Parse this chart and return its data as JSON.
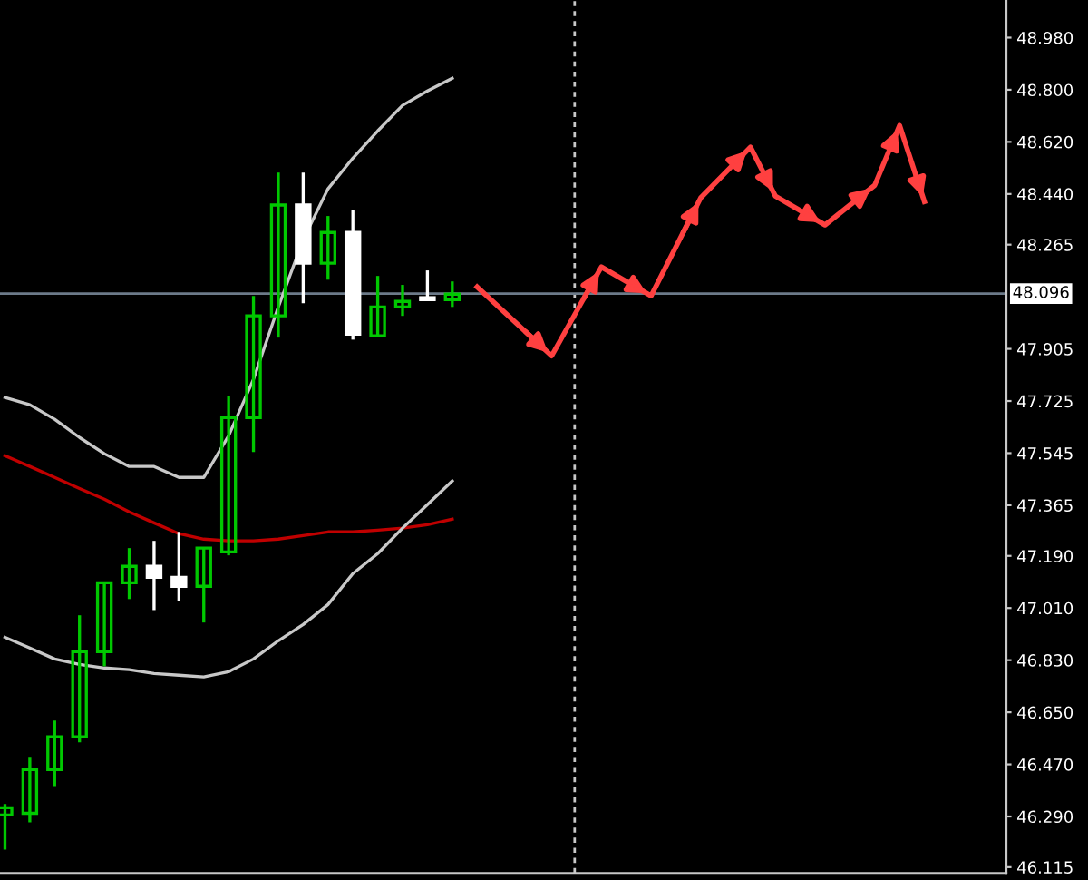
{
  "chart_data": {
    "type": "candlestick",
    "ylim": [
      46.095,
      49.11
    ],
    "categories": [
      null,
      null,
      null,
      null,
      null,
      null,
      null,
      null,
      null,
      null,
      null,
      null,
      null,
      null,
      null,
      null,
      null,
      null,
      null,
      null,
      null,
      null,
      null,
      null,
      null,
      null,
      null,
      null,
      null,
      null,
      null,
      null,
      null,
      null,
      null,
      null,
      null,
      null,
      null,
      null,
      null
    ],
    "yticks": [
      46.115,
      {
        "value": 46.29,
        "label": "46.290"
      },
      {
        "value": 46.47,
        "label": "46.470"
      },
      {
        "value": 46.65,
        "label": "46.650"
      },
      {
        "value": 46.83,
        "label": "46.830"
      },
      {
        "value": 47.01,
        "label": "47.010"
      },
      {
        "value": 47.19,
        "label": "47.190"
      },
      47.365,
      47.545,
      47.725,
      47.905,
      48.265,
      {
        "value": 48.44,
        "label": "48.440"
      },
      {
        "value": 48.62,
        "label": "48.620"
      },
      {
        "value": 48.8,
        "label": "48.800"
      },
      {
        "value": 48.98,
        "label": "48.980"
      }
    ],
    "grid": false,
    "series": [
      {
        "type": "line",
        "color": "#c8c8c8",
        "values": [
          47.737,
          47.712,
          47.662,
          47.599,
          47.543,
          47.499,
          47.499,
          47.461,
          47.461,
          47.605,
          47.8,
          48.05,
          48.282,
          48.458,
          48.564,
          48.658,
          48.746,
          48.796,
          48.84,
          null,
          null,
          null,
          null,
          null,
          null,
          null,
          null,
          null,
          null,
          null,
          null,
          null,
          null,
          null,
          null,
          null,
          null,
          null,
          null,
          null,
          null
        ]
      },
      {
        "type": "line",
        "color": "#c00000",
        "values": [
          47.536,
          47.499,
          47.461,
          47.423,
          47.386,
          47.342,
          47.304,
          47.267,
          47.248,
          47.242,
          47.242,
          47.248,
          47.26,
          47.273,
          47.273,
          47.279,
          47.286,
          47.298,
          47.317,
          null,
          null,
          null,
          null,
          null,
          null,
          null,
          null,
          null,
          null,
          null,
          null,
          null,
          null,
          null,
          null,
          null,
          null,
          null,
          null,
          null,
          null
        ]
      },
      {
        "type": "line",
        "color": "#c8c8c8",
        "values": [
          46.909,
          46.872,
          46.834,
          46.815,
          46.803,
          46.797,
          46.784,
          46.778,
          46.772,
          46.79,
          46.834,
          46.897,
          46.953,
          47.022,
          47.129,
          47.198,
          47.286,
          47.367,
          47.449,
          null,
          null,
          null,
          null,
          null,
          null,
          null,
          null,
          null,
          null,
          null,
          null,
          null,
          null,
          null,
          null,
          null,
          null,
          null,
          null,
          null,
          null
        ]
      },
      {
        "type": "line",
        "color": "#ff4040",
        "values": [
          null,
          null,
          null,
          null,
          null,
          null,
          null,
          null,
          null,
          null,
          null,
          null,
          null,
          null,
          null,
          null,
          null,
          null,
          null,
          48.119,
          null,
          null,
          47.881,
          null,
          48.188,
          null,
          48.088,
          null,
          48.427,
          null,
          48.602,
          48.433,
          null,
          48.333,
          null,
          48.47,
          48.677,
          48.414,
          null,
          null,
          null
        ]
      },
      {
        "colors": [
          "#00c800",
          "#00c800",
          "#00c800",
          "#00c800",
          "#00c800",
          "#00c800",
          "#ffffff",
          "#ffffff",
          "#00c800",
          "#00c800",
          "#00c800",
          "#00c800",
          "#ffffff",
          "#00c800",
          "#ffffff",
          "#00c800",
          "#00c800",
          "#ffffff",
          "#00c800",
          null,
          null,
          null,
          null,
          null,
          null,
          null,
          null,
          null,
          null,
          null,
          null,
          null,
          null,
          null,
          null,
          null,
          null,
          null,
          null,
          null,
          null
        ],
        "ohlc": [
          [
            46.295,
            46.333,
            46.176,
            46.32
          ],
          [
            46.301,
            46.496,
            46.27,
            46.452
          ],
          [
            46.452,
            46.621,
            46.395,
            46.565
          ],
          [
            46.565,
            46.985,
            46.546,
            46.859
          ],
          [
            46.859,
            47.097,
            46.809,
            47.097
          ],
          [
            47.097,
            47.217,
            47.041,
            47.154
          ],
          [
            47.154,
            47.242,
            47.003,
            47.116
          ],
          [
            47.116,
            47.273,
            47.035,
            47.085
          ],
          [
            47.085,
            47.217,
            46.96,
            47.217
          ],
          [
            47.204,
            47.743,
            47.192,
            47.668
          ],
          [
            47.668,
            48.088,
            47.549,
            48.019
          ],
          [
            48.019,
            48.514,
            47.944,
            48.402
          ],
          [
            48.402,
            48.514,
            48.063,
            48.201
          ],
          [
            48.201,
            48.364,
            48.144,
            48.307
          ],
          [
            48.307,
            48.383,
            47.937,
            47.956
          ],
          [
            47.95,
            48.157,
            47.95,
            48.05
          ],
          [
            48.05,
            48.126,
            48.019,
            48.069
          ],
          [
            48.082,
            48.176,
            48.075,
            48.075
          ],
          [
            48.075,
            48.138,
            48.05,
            48.094
          ],
          null,
          null,
          null,
          null,
          null,
          null,
          null,
          null,
          null,
          null,
          null,
          null,
          null,
          null,
          null,
          null,
          null,
          null,
          null,
          null,
          null,
          null
        ]
      }
    ],
    "ref_lines": [
      {
        "axis": "y",
        "value": 48.096,
        "label": "48.096",
        "color": "#6c7a89",
        "line_style": "solid"
      }
    ]
  }
}
